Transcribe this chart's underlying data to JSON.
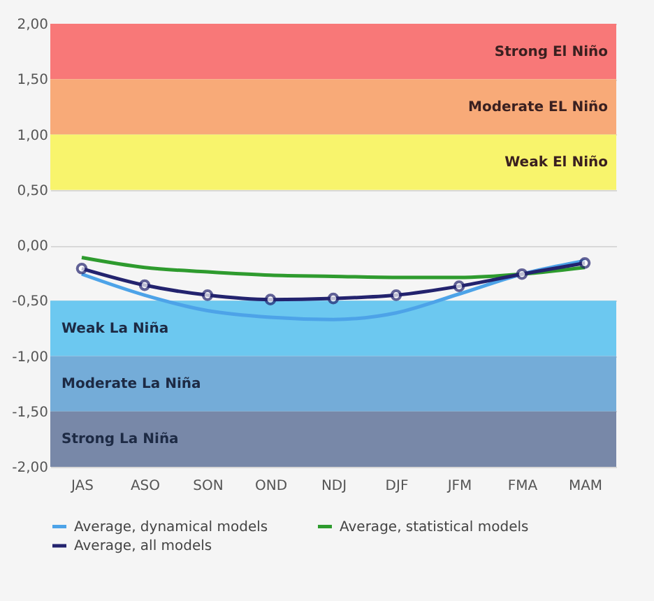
{
  "chart_data": {
    "type": "line",
    "categories": [
      "JAS",
      "ASO",
      "SON",
      "OND",
      "NDJ",
      "DJF",
      "JFM",
      "FMA",
      "MAM"
    ],
    "series": [
      {
        "name": "Average, dynamical models",
        "color": "#4da3e8",
        "marker": "none",
        "values": [
          -0.26,
          -0.45,
          -0.59,
          -0.65,
          -0.67,
          -0.61,
          -0.44,
          -0.26,
          -0.14
        ]
      },
      {
        "name": "Average, statistical models",
        "color": "#2e9b2e",
        "marker": "none",
        "values": [
          -0.11,
          -0.2,
          -0.24,
          -0.27,
          -0.28,
          -0.29,
          -0.29,
          -0.26,
          -0.2
        ]
      },
      {
        "name": "Average, all models",
        "color": "#23236e",
        "marker": "circle",
        "values": [
          -0.21,
          -0.36,
          -0.45,
          -0.49,
          -0.48,
          -0.45,
          -0.37,
          -0.26,
          -0.16
        ]
      }
    ],
    "ylim": [
      -2,
      2
    ],
    "yticks": [
      {
        "value": -2,
        "label": "-2,00"
      },
      {
        "value": -1.5,
        "label": "-1,50"
      },
      {
        "value": -1,
        "label": "-1,00"
      },
      {
        "value": -0.5,
        "label": "-0,50"
      },
      {
        "value": 0,
        "label": "0,00"
      },
      {
        "value": 0.5,
        "label": "0,50"
      },
      {
        "value": 1,
        "label": "1,00"
      },
      {
        "value": 1.5,
        "label": "1,50"
      },
      {
        "value": 2,
        "label": "2,00"
      }
    ],
    "bands": [
      {
        "axis": "y",
        "from": 1.5,
        "to": 2,
        "label": "Strong El Niño",
        "color": "#f87878"
      },
      {
        "axis": "y",
        "from": 1,
        "to": 1.5,
        "label": "Moderate EL Niño",
        "color": "#f8aa78"
      },
      {
        "axis": "y",
        "from": 0.5,
        "to": 1,
        "label": "Weak El Niño",
        "color": "#f8f46c"
      },
      {
        "axis": "y",
        "from": -1,
        "to": -0.5,
        "label": "Weak La Niña",
        "color": "#6cc8f0"
      },
      {
        "axis": "y",
        "from": -1.5,
        "to": -1,
        "label": "Moderate La Niña",
        "color": "#74acd8"
      },
      {
        "axis": "y",
        "from": -2,
        "to": -1.5,
        "label": "Strong La Niña",
        "color": "#7888a8"
      }
    ],
    "grid": "y",
    "legend": "bottom",
    "line_style": "solid"
  }
}
